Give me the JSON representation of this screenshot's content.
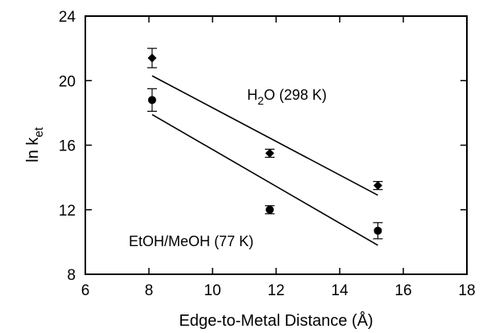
{
  "chart_data": {
    "type": "scatter",
    "xlabel": "Edge-to-Metal Distance   (Å)",
    "ylabel_main": "ln k",
    "ylabel_sub": "et",
    "xlim": [
      6,
      18
    ],
    "ylim": [
      8,
      24
    ],
    "xticks": [
      6,
      8,
      10,
      12,
      14,
      16,
      18
    ],
    "yticks": [
      8,
      12,
      16,
      20,
      24
    ],
    "grid": false,
    "series": [
      {
        "label_main": "H",
        "label_sub": "2",
        "label_rest": "O (298 K)",
        "marker": "diamond",
        "points": [
          {
            "x": 8.1,
            "y": 21.4,
            "err": 0.6
          },
          {
            "x": 11.8,
            "y": 15.5,
            "err": 0.25
          },
          {
            "x": 15.2,
            "y": 13.5,
            "err": 0.25
          }
        ],
        "fit": {
          "x": [
            8.1,
            15.2
          ],
          "y": [
            20.3,
            12.9
          ]
        }
      },
      {
        "label": "EtOH/MeOH (77 K)",
        "marker": "circle",
        "points": [
          {
            "x": 8.1,
            "y": 18.8,
            "err": 0.7
          },
          {
            "x": 11.8,
            "y": 12.0,
            "err": 0.25
          },
          {
            "x": 15.2,
            "y": 10.7,
            "err": 0.5
          }
        ],
        "fit": {
          "x": [
            8.1,
            15.2
          ],
          "y": [
            17.9,
            9.8
          ]
        }
      }
    ]
  }
}
